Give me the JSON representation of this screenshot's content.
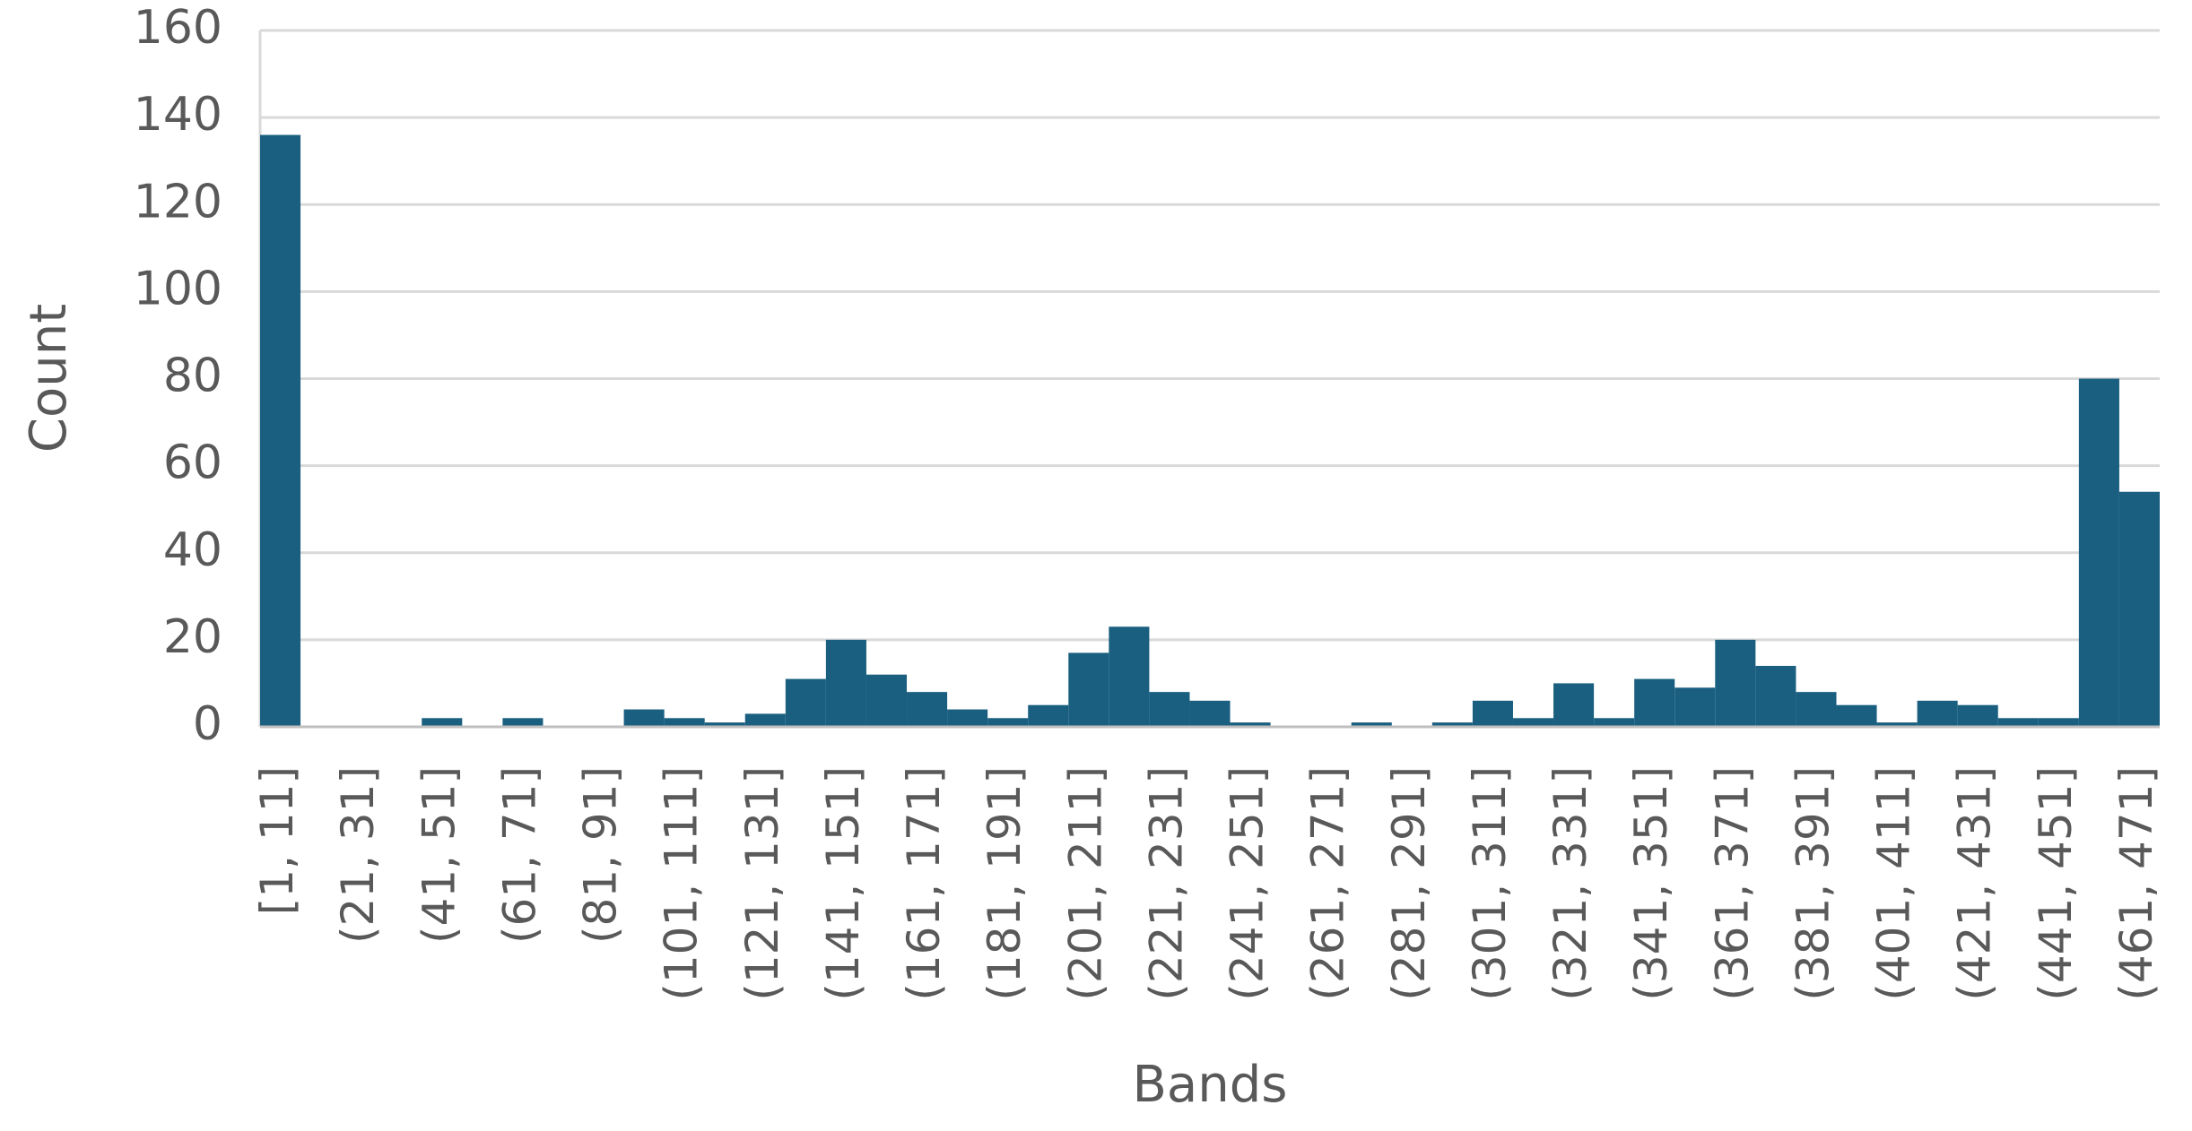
{
  "chart_data": {
    "type": "bar",
    "x_label": "Bands",
    "y_label": "Count",
    "categories": [
      "[1, 11]",
      null,
      "(21, 31]",
      null,
      "(41, 51]",
      null,
      "(61, 71]",
      null,
      "(81, 91]",
      null,
      "(101, 111]",
      null,
      "(121, 131]",
      null,
      "(141, 151]",
      null,
      "(161, 171]",
      null,
      "(181, 191]",
      null,
      "(201, 211]",
      null,
      "(221, 231]",
      null,
      "(241, 251]",
      null,
      "(261, 271]",
      null,
      "(281, 291]",
      null,
      "(301, 311]",
      null,
      "(321, 331]",
      null,
      "(341, 351]",
      null,
      "(361, 371]",
      null,
      "(381, 391]",
      null,
      "(401, 411]",
      null,
      "(421, 431]",
      null,
      "(441, 451]",
      null,
      "(461, 471]"
    ],
    "values": [
      136,
      0,
      0,
      0,
      2,
      0,
      2,
      0,
      0,
      4,
      2,
      1,
      3,
      11,
      20,
      12,
      8,
      4,
      2,
      5,
      17,
      23,
      8,
      6,
      1,
      0,
      0,
      1,
      0,
      1,
      6,
      2,
      10,
      2,
      11,
      9,
      20,
      14,
      8,
      5,
      1,
      6,
      5,
      2,
      2,
      80,
      54
    ],
    "color": "#1a5f80",
    "ylim": [
      0,
      160
    ],
    "yticks": [
      0,
      20,
      40,
      60,
      80,
      100,
      120,
      140,
      160
    ],
    "grid": true
  }
}
